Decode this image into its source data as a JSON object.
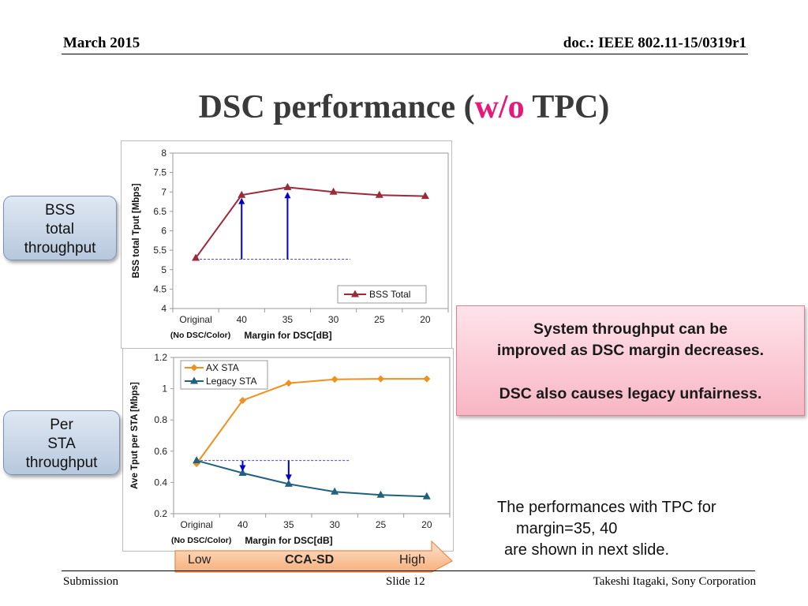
{
  "header": {
    "date": "March 2015",
    "doc": "doc.: IEEE 802.11-15/0319r1"
  },
  "title": {
    "pre": "DSC performance (",
    "highlight": "w/o",
    "post": " TPC)"
  },
  "labels": {
    "bss": [
      "BSS",
      "total",
      "throughput"
    ],
    "per_sta": [
      "Per",
      "STA",
      "throughput"
    ]
  },
  "callout": {
    "line1": "System throughput can be",
    "line2": "improved as DSC margin decreases.",
    "line3": "DSC also causes legacy unfairness."
  },
  "note": {
    "line1": "The performances with TPC for",
    "line2": "margin=35, 40",
    "line3": "are shown in next slide."
  },
  "cca_arrow": {
    "low": "Low",
    "label": "CCA-SD",
    "high": "High"
  },
  "footer": {
    "left": "Submission",
    "center": "Slide 12",
    "right": "Takeshi Itagaki, Sony Corporation"
  },
  "colors": {
    "bss_total": "#9b2a3a",
    "ax_sta": "#f0901e",
    "legacy_sta": "#21607e",
    "arrow": "#0000cc",
    "reference_line": "#4a4ad0",
    "highlight": "#e8177a"
  },
  "chart_data": [
    {
      "type": "line",
      "categories": [
        "Original",
        "40",
        "35",
        "30",
        "25",
        "20"
      ],
      "sub_label": "(No DSC/Color)",
      "xlabel": "Margin for DSC[dB]",
      "ylabel": "BSS total Tput [Mbps]",
      "ylim": [
        4,
        8
      ],
      "yticks": [
        "4",
        "4.5",
        "5",
        "5.5",
        "6",
        "6.5",
        "7",
        "7.5",
        "8"
      ],
      "legend_position": "bottom-right",
      "series": [
        {
          "name": "BSS Total",
          "values": [
            5.3,
            6.92,
            7.12,
            7.0,
            6.92,
            6.89
          ]
        }
      ],
      "arrows": [
        {
          "category": "40",
          "from": 5.27,
          "to": 6.85
        },
        {
          "category": "35",
          "from": 5.27,
          "to": 7.0
        }
      ],
      "reference_line": {
        "value": 5.27
      }
    },
    {
      "type": "line",
      "categories": [
        "Original",
        "40",
        "35",
        "30",
        "25",
        "20"
      ],
      "sub_label": "(No DSC/Color)",
      "xlabel": "Margin for DSC[dB]",
      "ylabel": "Ave Tput per STA [Mbps]",
      "ylim": [
        0.2,
        1.2
      ],
      "yticks": [
        "0.2",
        "0.4",
        "0.6",
        "0.8",
        "1",
        "1.2"
      ],
      "legend_position": "top-left",
      "series": [
        {
          "name": "AX STA",
          "values": [
            0.52,
            0.925,
            1.035,
            1.06,
            1.063,
            1.063
          ]
        },
        {
          "name": "Legacy STA",
          "values": [
            0.54,
            0.46,
            0.39,
            0.34,
            0.32,
            0.31
          ]
        }
      ],
      "arrows": [
        {
          "category": "40",
          "from": 0.54,
          "to": 0.47
        },
        {
          "category": "35",
          "from": 0.54,
          "to": 0.41
        }
      ],
      "reference_line": {
        "value": 0.54
      }
    }
  ]
}
